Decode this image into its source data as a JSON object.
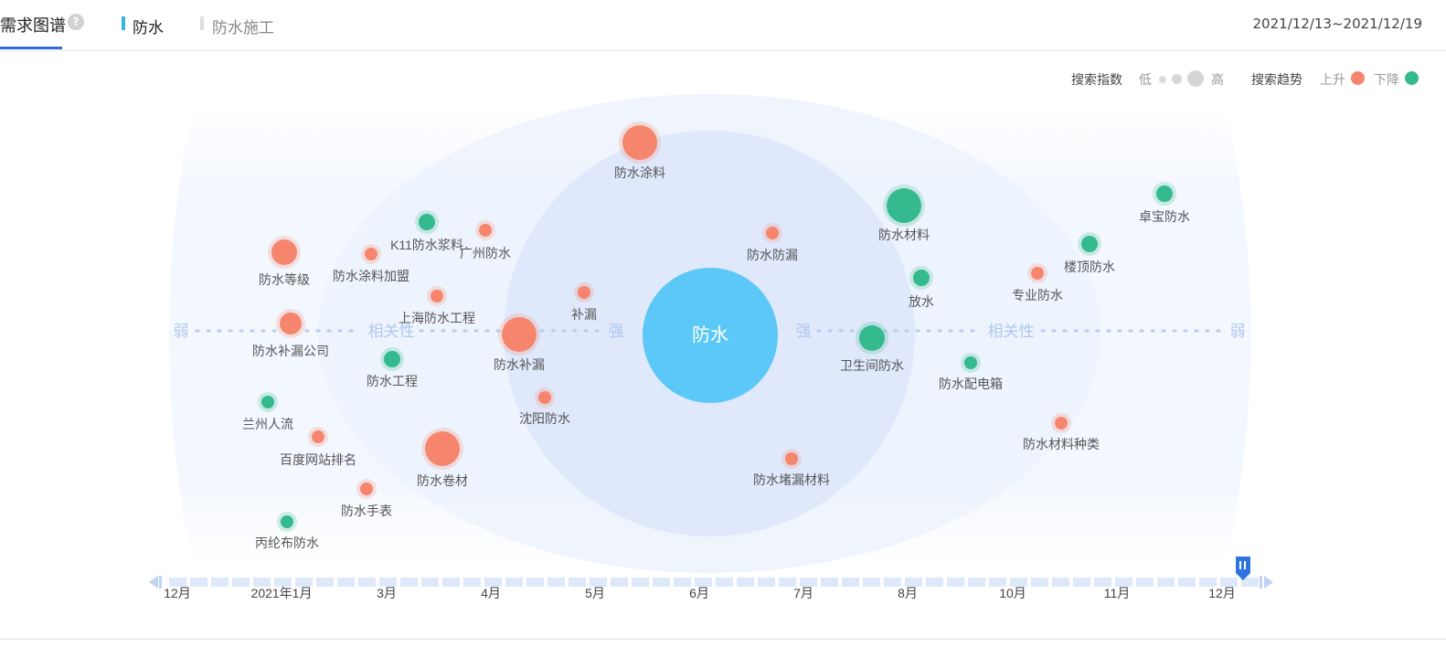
{
  "header": {
    "title": "需求图谱",
    "help_icon": "question-circle-icon",
    "breadcrumbs": [
      {
        "label": "防水",
        "bar_color": "#36b4e6",
        "color": "#222222"
      },
      {
        "label": "防水施工",
        "bar_color": "#dddddd",
        "color": "#888888"
      }
    ],
    "date_range": "2021/12/13~2021/12/19"
  },
  "legend": {
    "search_index_label": "搜索指数",
    "low_label": "低",
    "high_label": "高",
    "trend_label": "搜索趋势",
    "up_label": "上升",
    "down_label": "下降",
    "up_color": "#f6856d",
    "down_color": "#35b98f"
  },
  "graph": {
    "center": "防水",
    "axis_weak": "弱",
    "axis_strong": "强",
    "axis_relevance": "相关性",
    "nodes": [
      {
        "label": "防水涂料",
        "trend": "up",
        "index": 5
      },
      {
        "label": "防水材料",
        "trend": "down",
        "index": 5
      },
      {
        "label": "卓宝防水",
        "trend": "down",
        "index": 2
      },
      {
        "label": "K11防水浆料",
        "trend": "down",
        "index": 2
      },
      {
        "label": "广州防水",
        "trend": "up",
        "index": 1
      },
      {
        "label": "防水等级",
        "trend": "up",
        "index": 4
      },
      {
        "label": "防水涂料加盟",
        "trend": "up",
        "index": 1
      },
      {
        "label": "防水防漏",
        "trend": "up",
        "index": 1
      },
      {
        "label": "楼顶防水",
        "trend": "down",
        "index": 2
      },
      {
        "label": "上海防水工程",
        "trend": "up",
        "index": 1
      },
      {
        "label": "补漏",
        "trend": "up",
        "index": 1
      },
      {
        "label": "放水",
        "trend": "down",
        "index": 2
      },
      {
        "label": "专业防水",
        "trend": "up",
        "index": 1
      },
      {
        "label": "防水补漏公司",
        "trend": "up",
        "index": 3
      },
      {
        "label": "防水补漏",
        "trend": "up",
        "index": 5
      },
      {
        "label": "卫生间防水",
        "trend": "down",
        "index": 4
      },
      {
        "label": "防水工程",
        "trend": "down",
        "index": 2
      },
      {
        "label": "防水配电箱",
        "trend": "down",
        "index": 1
      },
      {
        "label": "兰州人流",
        "trend": "down",
        "index": 1
      },
      {
        "label": "沈阳防水",
        "trend": "up",
        "index": 1
      },
      {
        "label": "防水材料种类",
        "trend": "up",
        "index": 1
      },
      {
        "label": "百度网站排名",
        "trend": "up",
        "index": 1
      },
      {
        "label": "防水卷材",
        "trend": "up",
        "index": 5
      },
      {
        "label": "防水堵漏材料",
        "trend": "up",
        "index": 1
      },
      {
        "label": "防水手表",
        "trend": "up",
        "index": 1
      },
      {
        "label": "丙纶布防水",
        "trend": "down",
        "index": 1
      }
    ]
  },
  "timeline": {
    "labels": [
      "12月",
      "2021年1月",
      "3月",
      "4月",
      "5月",
      "6月",
      "7月",
      "8月",
      "10月",
      "11月",
      "12月"
    ],
    "pause_icon": "pause-icon",
    "prev_icon": "step-backward-icon",
    "next_icon": "step-forward-icon"
  }
}
